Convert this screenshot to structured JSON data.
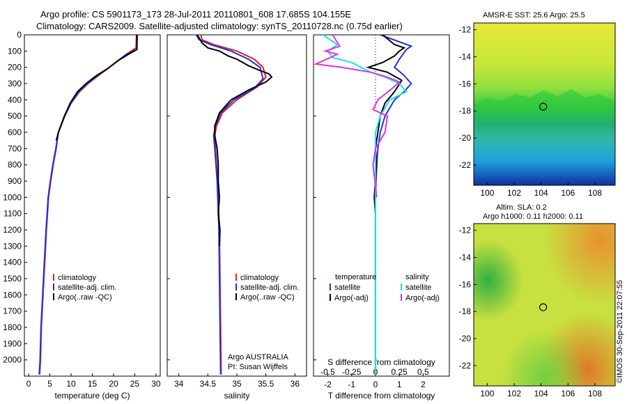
{
  "header": {
    "line1": "Argo profile: CS 5901173_173 28-Jul-2011 20110801_608 17.685S 104.155E",
    "line2": "Climatology: CARS2009. Satellite-adjusted climatology: synTS_20110728.nc (0.75d earlier)"
  },
  "colors": {
    "climatology": "#e02020",
    "satellite": "#2030e0",
    "argo": "#000000",
    "salinity_sat": "#20e0e8",
    "salinity_argo": "#e030e0"
  },
  "chart_data": [
    {
      "type": "line",
      "id": "temperature",
      "xlabel": "temperature (deg C)",
      "ylabel": "",
      "xlim": [
        -1,
        31
      ],
      "ylim": [
        2100,
        0
      ],
      "xticks": [
        "0",
        "5",
        "10",
        "15",
        "20",
        "25",
        "30"
      ],
      "xtick_values": [
        0,
        5,
        10,
        15,
        20,
        25,
        30
      ],
      "yticks": [
        "0",
        "100",
        "200",
        "300",
        "400",
        "500",
        "600",
        "700",
        "800",
        "900",
        "1000",
        "1100",
        "1200",
        "1300",
        "1400",
        "1500",
        "1600",
        "1700",
        "1800",
        "1900",
        "2000"
      ],
      "ytick_values": [
        0,
        100,
        200,
        300,
        400,
        500,
        600,
        700,
        800,
        900,
        1000,
        1100,
        1200,
        1300,
        1400,
        1500,
        1600,
        1700,
        1800,
        1900,
        2000
      ],
      "legend": [
        "climatology",
        "satellite-adj. clim.",
        "Argo(..raw -QC)"
      ],
      "series": [
        {
          "name": "climatology",
          "color": "#e02020",
          "x": [
            25.4,
            25.3,
            23,
            21,
            19,
            16.5,
            14,
            12,
            10,
            8.5,
            7,
            6.5,
            5.8,
            5.2,
            4.7,
            4.2,
            3.8,
            3.4,
            3.0,
            2.8,
            2.6
          ],
          "y": [
            0,
            80,
            120,
            160,
            200,
            250,
            300,
            350,
            420,
            500,
            600,
            700,
            800,
            900,
            1000,
            1200,
            1400,
            1600,
            1800,
            2000,
            2090
          ]
        },
        {
          "name": "satellite-adj. clim.",
          "color": "#2030e0",
          "x": [
            25.6,
            25.5,
            23,
            21,
            19,
            16.3,
            13.8,
            11.8,
            10,
            8.5,
            7,
            6.4,
            5.7,
            5.1,
            4.6,
            4.1,
            3.7,
            3.3,
            2.9,
            2.7,
            2.5
          ],
          "y": [
            0,
            90,
            120,
            160,
            200,
            250,
            300,
            350,
            420,
            500,
            600,
            700,
            800,
            900,
            1000,
            1200,
            1400,
            1600,
            1800,
            2000,
            2090
          ]
        },
        {
          "name": "Argo(..raw -QC)",
          "color": "#000000",
          "x": [
            25.5,
            25.5,
            23.5,
            21,
            19.5,
            18.5,
            16,
            13.5,
            11.5,
            9.8,
            8.4,
            7,
            6.5
          ],
          "y": [
            0,
            90,
            120,
            160,
            190,
            210,
            250,
            300,
            350,
            420,
            500,
            600,
            650
          ]
        }
      ]
    },
    {
      "type": "line",
      "id": "salinity",
      "xlabel": "salinity",
      "xlim": [
        33.8,
        36.2
      ],
      "ylim": [
        2100,
        0
      ],
      "xticks": [
        "34",
        "34.5",
        "35",
        "35.5",
        "36"
      ],
      "xtick_values": [
        34,
        34.5,
        35,
        35.5,
        36
      ],
      "legend": [
        "climatology",
        "satellite-adj. clim.",
        "Argo(..raw -QC)"
      ],
      "annotation": [
        "Argo AUSTRALIA",
        "PI: Susan Wijffels"
      ],
      "series": [
        {
          "name": "climatology",
          "color": "#e02020",
          "x": [
            34.38,
            34.4,
            34.6,
            35.0,
            35.3,
            35.45,
            35.5,
            35.35,
            35.0,
            34.75,
            34.65,
            34.62,
            34.63,
            34.65,
            34.67,
            34.68,
            34.7,
            34.71,
            34.72,
            34.73
          ],
          "y": [
            0,
            30,
            60,
            100,
            150,
            200,
            260,
            320,
            400,
            480,
            560,
            620,
            700,
            800,
            900,
            1000,
            1200,
            1500,
            1800,
            2090
          ]
        },
        {
          "name": "satellite-adj. clim.",
          "color": "#2030e0",
          "x": [
            34.3,
            34.35,
            34.55,
            34.9,
            35.2,
            35.4,
            35.45,
            35.3,
            34.95,
            34.72,
            34.63,
            34.6,
            34.62,
            34.64,
            34.66,
            34.67,
            34.69,
            34.7,
            34.71,
            34.72
          ],
          "y": [
            0,
            30,
            60,
            100,
            150,
            200,
            270,
            330,
            400,
            480,
            560,
            620,
            700,
            800,
            900,
            1000,
            1200,
            1500,
            1800,
            2090
          ]
        },
        {
          "name": "Argo(..raw -QC)",
          "color": "#000000",
          "x": [
            34.32,
            34.4,
            34.5,
            34.7,
            34.85,
            35.0,
            35.2,
            35.4,
            35.55,
            35.6,
            35.5,
            35.2,
            34.9,
            34.7,
            34.62,
            34.62,
            34.66,
            34.68,
            34.68,
            34.7,
            34.68,
            34.71,
            34.7
          ],
          "y": [
            0,
            50,
            80,
            100,
            130,
            150,
            190,
            220,
            240,
            260,
            290,
            340,
            400,
            480,
            560,
            620,
            700,
            800,
            900,
            1000,
            1100,
            1200,
            1300
          ]
        }
      ]
    },
    {
      "type": "line",
      "id": "difference",
      "xlabel": "T difference from climatology",
      "top_label": "S difference from climatology",
      "xlim_T": [
        -2.6,
        3.1
      ],
      "xticks_T": [
        "-2",
        "-1",
        "0",
        "1",
        "2"
      ],
      "xtick_values_T": [
        -2,
        -1,
        0,
        1,
        2
      ],
      "xticks_S": [
        "-0.5",
        "-0.25",
        "0",
        "0.25",
        "0.5"
      ],
      "xtick_values_S": [
        -0.5,
        -0.25,
        0,
        0.25,
        0.5
      ],
      "legend_left_title": "temperature",
      "legend_right_title": "salinity",
      "legend": [
        "satellite",
        "Argo(-adj)",
        "satellite",
        "Argo(-adj)"
      ],
      "series": [
        {
          "name": "T satellite",
          "color": "#2030e0",
          "x": [
            0.2,
            1.5,
            1.3,
            1.0,
            0.8,
            1.2,
            1.5,
            1.2,
            0.8,
            0.4,
            0.2,
            0.1,
            0.05,
            0.0,
            0.0,
            0.0,
            0.0,
            0.0
          ],
          "y": [
            0,
            70,
            90,
            150,
            200,
            250,
            300,
            350,
            400,
            500,
            600,
            700,
            800,
            1000,
            1200,
            1500,
            1800,
            2090
          ]
        },
        {
          "name": "T Argo(-adj)",
          "color": "#000000",
          "x": [
            0.3,
            0.8,
            1.2,
            1.0,
            0.8,
            0.3,
            -0.3,
            0.5,
            1.1,
            0.8,
            0.4,
            0.2,
            0.1,
            0.0,
            0.05,
            0.0,
            -0.05,
            0.0
          ],
          "y": [
            0,
            60,
            80,
            100,
            130,
            170,
            200,
            230,
            280,
            350,
            420,
            500,
            600,
            700,
            800,
            900,
            1000,
            1100
          ]
        },
        {
          "name": "S satellite",
          "color": "#20e0e8",
          "x": [
            -2.2,
            -1.6,
            -2.0,
            -1.8,
            -1.0,
            -0.6,
            -0.2,
            0.4,
            1.0,
            1.3,
            0.6,
            0.2,
            0.0,
            0.0,
            0.0,
            0.0
          ],
          "y": [
            0,
            60,
            100,
            140,
            170,
            200,
            230,
            260,
            300,
            350,
            400,
            500,
            600,
            800,
            1200,
            2090
          ]
        },
        {
          "name": "S Argo(-adj)",
          "color": "#e030e0",
          "x": [
            -1.8,
            -1.5,
            -2.1,
            -1.6,
            -2.5,
            -1.4,
            -0.2,
            0.5,
            1.0,
            0.7,
            0.1,
            -0.1,
            0.5,
            0.4,
            0.0,
            -0.1,
            0.05
          ],
          "y": [
            0,
            70,
            100,
            120,
            180,
            200,
            230,
            260,
            290,
            330,
            400,
            460,
            500,
            600,
            700,
            800,
            1000
          ]
        }
      ]
    }
  ],
  "maps": {
    "sst": {
      "title": "AMSR-E SST: 25.6 Argo: 25.5",
      "yticks": [
        "-12",
        "-14",
        "-16",
        "-18",
        "-20",
        "-22"
      ],
      "xticks": [
        "100",
        "102",
        "104",
        "106",
        "108"
      ],
      "marker_lon": 104.155,
      "marker_lat": -17.685
    },
    "sla": {
      "title1": "Altim. SLA: 0.2",
      "title2": "Argo h1000: 0.11 h2000: 0.11",
      "yticks": [
        "-12",
        "-14",
        "-16",
        "-18",
        "-20",
        "-22"
      ],
      "xticks": [
        "100",
        "102",
        "104",
        "106",
        "108"
      ],
      "marker_lon": 104.155,
      "marker_lat": -17.685
    }
  },
  "footer": {
    "credit": "©IMOS 30-Sep-2011 22:07:55"
  }
}
